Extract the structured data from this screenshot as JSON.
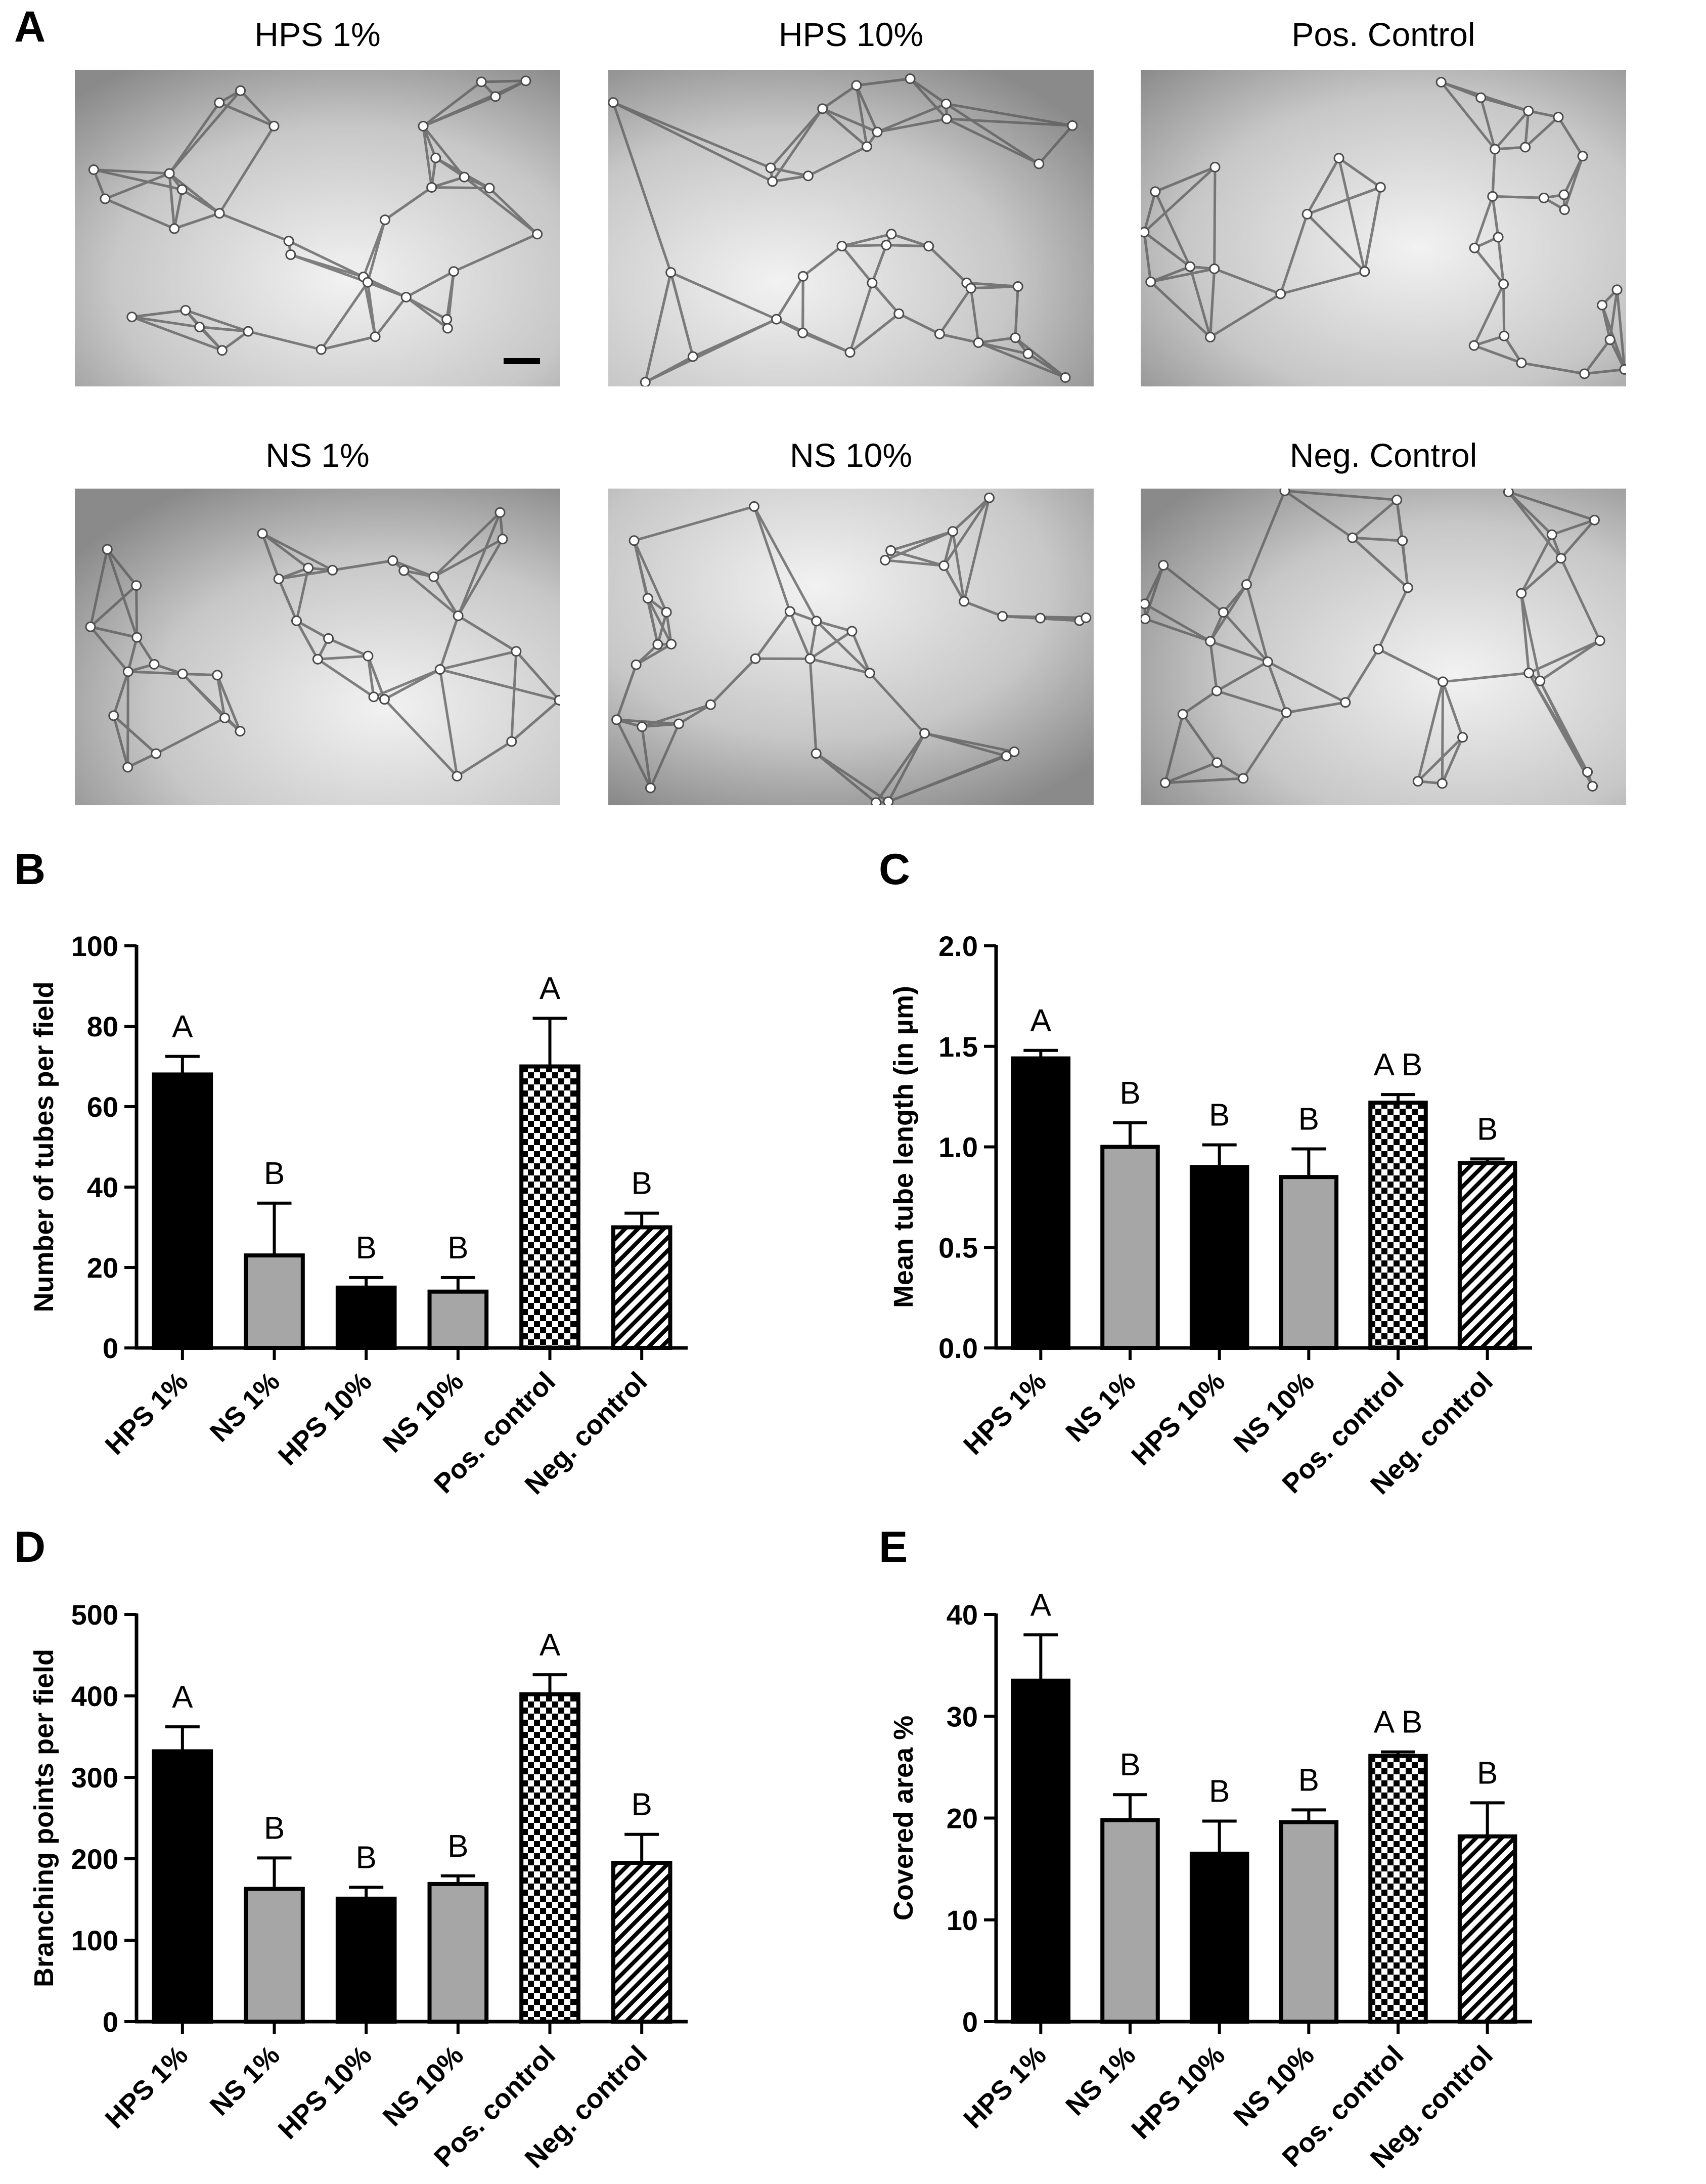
{
  "panels": {
    "A": "A",
    "B": "B",
    "C": "C",
    "D": "D",
    "E": "E"
  },
  "micrographs": {
    "titles": [
      "HPS 1%",
      "HPS 10%",
      "Pos. Control",
      "NS 1%",
      "NS 10%",
      "Neg. Control"
    ]
  },
  "colors": {
    "black": "#000000",
    "grey": "#a6a6a6",
    "micro_bg": "#c7c7c7",
    "micro_dark": "#8a8a8a",
    "micro_light": "#f2f2f2"
  },
  "chart_data": [
    {
      "type": "bar",
      "panel": "B",
      "categories": [
        "HPS 1%",
        "NS 1%",
        "HPS 10%",
        "NS 10%",
        "Pos. control",
        "Neg. control"
      ],
      "values": [
        68,
        23,
        15,
        14,
        70,
        30
      ],
      "errors": [
        4.5,
        13,
        2.5,
        3.5,
        12,
        3.5
      ],
      "letters": [
        "A",
        "B",
        "B",
        "B",
        "A",
        "B"
      ],
      "fills": [
        "black",
        "grey",
        "black",
        "grey",
        "checker",
        "hatch"
      ],
      "ylabel": "Number of tubes per field",
      "ylim": [
        0,
        100
      ],
      "yticks": [
        "0",
        "20",
        "40",
        "60",
        "80",
        "100"
      ],
      "ytick_values": [
        0,
        20,
        40,
        60,
        80,
        100
      ]
    },
    {
      "type": "bar",
      "panel": "C",
      "categories": [
        "HPS 1%",
        "NS 1%",
        "HPS 10%",
        "NS 10%",
        "Pos. control",
        "Neg. control"
      ],
      "values": [
        1.44,
        1.0,
        0.9,
        0.85,
        1.22,
        0.92
      ],
      "errors": [
        0.04,
        0.12,
        0.11,
        0.14,
        0.04,
        0.02
      ],
      "letters": [
        "A",
        "B",
        "B",
        "B",
        "A B",
        "B"
      ],
      "fills": [
        "black",
        "grey",
        "black",
        "grey",
        "checker",
        "hatch"
      ],
      "ylabel": "Mean tube length (in µm)",
      "ylim": [
        0,
        2.0
      ],
      "yticks": [
        "0.0",
        "0.5",
        "1.0",
        "1.5",
        "2.0"
      ],
      "ytick_values": [
        0,
        0.5,
        1.0,
        1.5,
        2.0
      ]
    },
    {
      "type": "bar",
      "panel": "D",
      "categories": [
        "HPS 1%",
        "NS 1%",
        "HPS 10%",
        "NS 10%",
        "Pos. control",
        "Neg. control"
      ],
      "values": [
        332,
        163,
        151,
        169,
        402,
        195
      ],
      "errors": [
        30,
        38,
        14,
        10,
        24,
        35
      ],
      "letters": [
        "A",
        "B",
        "B",
        "B",
        "A",
        "B"
      ],
      "fills": [
        "black",
        "grey",
        "black",
        "grey",
        "checker",
        "hatch"
      ],
      "ylabel": "Branching points per field",
      "ylim": [
        0,
        500
      ],
      "yticks": [
        "0",
        "100",
        "200",
        "300",
        "400",
        "500"
      ],
      "ytick_values": [
        0,
        100,
        200,
        300,
        400,
        500
      ]
    },
    {
      "type": "bar",
      "panel": "E",
      "categories": [
        "HPS 1%",
        "NS 1%",
        "HPS 10%",
        "NS 10%",
        "Pos. control",
        "Neg. control"
      ],
      "values": [
        33.5,
        19.8,
        16.5,
        19.6,
        26.1,
        18.2
      ],
      "errors": [
        4.5,
        2.5,
        3.2,
        1.2,
        0.4,
        3.3
      ],
      "letters": [
        "A",
        "B",
        "B",
        "B",
        "A B",
        "B"
      ],
      "fills": [
        "black",
        "grey",
        "black",
        "grey",
        "checker",
        "hatch"
      ],
      "ylabel": "Covered area %",
      "ylim": [
        0,
        40
      ],
      "yticks": [
        "0",
        "10",
        "20",
        "30",
        "40"
      ],
      "ytick_values": [
        0,
        10,
        20,
        30,
        40
      ]
    }
  ]
}
